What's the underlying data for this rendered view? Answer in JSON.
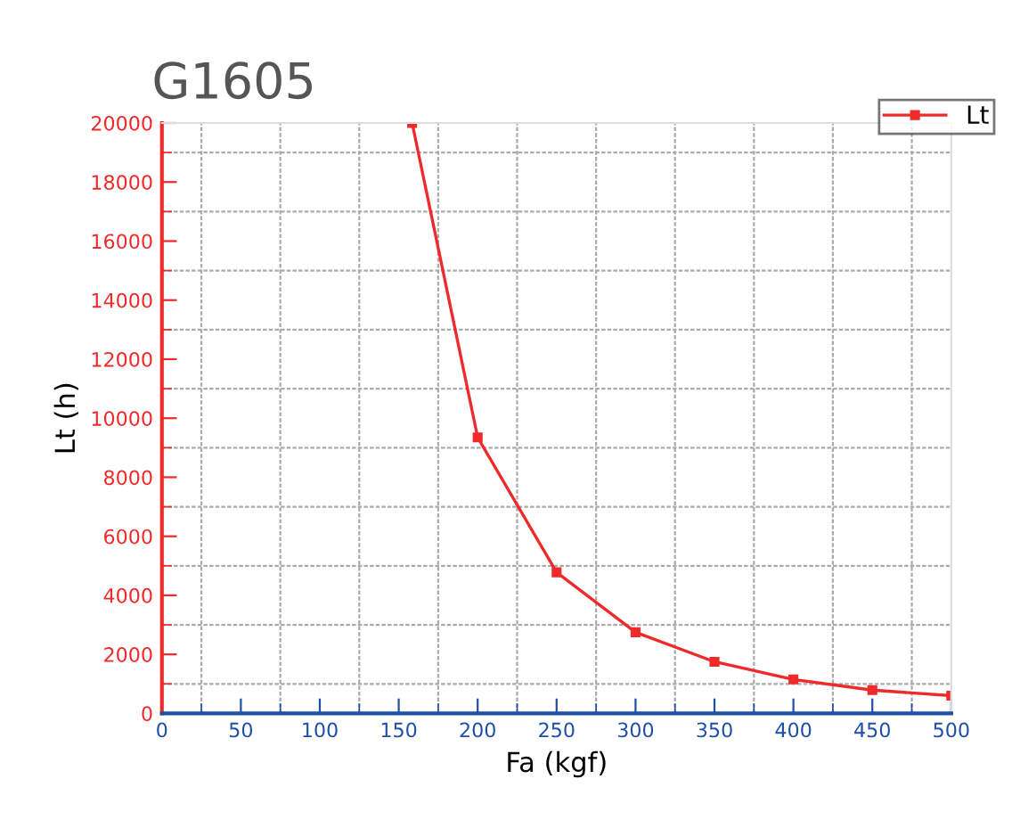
{
  "chart_data": {
    "type": "line",
    "title": "G1605",
    "xlabel": "Fa (kgf)",
    "ylabel": "Lt (h)",
    "x": [
      158.5,
      200,
      250,
      300,
      350,
      400,
      450,
      500
    ],
    "series": [
      {
        "name": "Lt",
        "color": "#ee2a2a",
        "values": [
          20000,
          9350,
          4780,
          2750,
          1750,
          1150,
          790,
          600
        ]
      }
    ],
    "xlim": [
      0,
      500
    ],
    "ylim": [
      0,
      20000
    ],
    "xticks": [
      0,
      {
        "value": 25,
        "label": null
      },
      50,
      {
        "value": 75,
        "label": null
      },
      100,
      {
        "value": 125,
        "label": null
      },
      150,
      {
        "value": 175,
        "label": null
      },
      200,
      {
        "value": 225,
        "label": null
      },
      250,
      {
        "value": 275,
        "label": null
      },
      300,
      {
        "value": 325,
        "label": null
      },
      350,
      {
        "value": 375,
        "label": null
      },
      400,
      {
        "value": 425,
        "label": null
      },
      450,
      {
        "value": 475,
        "label": null
      },
      500
    ],
    "yticks": [
      0,
      {
        "value": 1000,
        "label": null
      },
      2000,
      {
        "value": 3000,
        "label": null
      },
      4000,
      {
        "value": 5000,
        "label": null
      },
      6000,
      {
        "value": 7000,
        "label": null
      },
      8000,
      {
        "value": 9000,
        "label": null
      },
      10000,
      {
        "value": 11000,
        "label": null
      },
      12000,
      {
        "value": 13000,
        "label": null
      },
      14000,
      {
        "value": 15000,
        "label": null
      },
      16000,
      {
        "value": 17000,
        "label": null
      },
      18000,
      {
        "value": 19000,
        "label": null
      },
      20000
    ],
    "grid": true,
    "legend": "top right",
    "marker": "square",
    "line_style": "solid"
  }
}
